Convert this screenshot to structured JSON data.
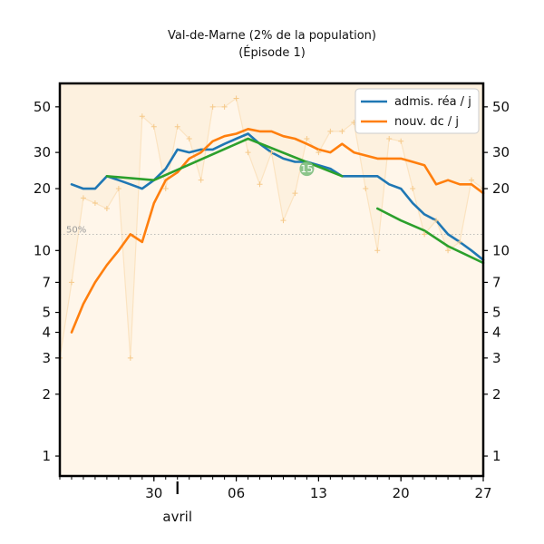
{
  "chart_data": {
    "type": "line",
    "title": "Val-de-Marne (2% de la population)",
    "subtitle": "(Épisode 1)",
    "scale": "log",
    "ylim": [
      0.8,
      65
    ],
    "y_ticks": [
      1,
      2,
      3,
      4,
      5,
      7,
      10,
      20,
      30,
      50
    ],
    "y_tick_labels": [
      "1",
      "2",
      "3",
      "4",
      "5",
      "7",
      "10",
      "20",
      "30",
      "50"
    ],
    "x_range": [
      "2020-03-22",
      "2020-04-27"
    ],
    "x_ticks": [
      {
        "date": "2020-03-30",
        "label": "30"
      },
      {
        "date": "2020-04-06",
        "label": "06"
      },
      {
        "date": "2020-04-13",
        "label": "13"
      },
      {
        "date": "2020-04-20",
        "label": "20"
      },
      {
        "date": "2020-04-27",
        "label": "27"
      }
    ],
    "month_label": {
      "date": "2020-04-01",
      "label": "avril"
    },
    "grid": false,
    "legend_position": "top-right",
    "legend": [
      "admis. réa / j",
      "nouv. dc / j"
    ],
    "reference_line": {
      "value": 12,
      "label": "50%"
    },
    "annotation": {
      "date": "2020-04-12",
      "value": 25,
      "label": "15"
    },
    "colors": {
      "rea": "#1f77b4",
      "dc": "#ff7f0e",
      "trend": "#2ca02c",
      "fill": "#fdf1df",
      "fill_line": "#fbe3c1",
      "markers": "#f5c98a"
    },
    "series": [
      {
        "name": "admis. réa / j",
        "x": [
          "2020-03-23",
          "2020-03-24",
          "2020-03-25",
          "2020-03-26",
          "2020-03-27",
          "2020-03-28",
          "2020-03-29",
          "2020-03-30",
          "2020-03-31",
          "2020-04-01",
          "2020-04-02",
          "2020-04-03",
          "2020-04-04",
          "2020-04-05",
          "2020-04-06",
          "2020-04-07",
          "2020-04-08",
          "2020-04-09",
          "2020-04-10",
          "2020-04-11",
          "2020-04-12",
          "2020-04-13",
          "2020-04-14",
          "2020-04-15",
          "2020-04-16",
          "2020-04-17",
          "2020-04-18",
          "2020-04-19",
          "2020-04-20",
          "2020-04-21",
          "2020-04-22",
          "2020-04-23",
          "2020-04-24",
          "2020-04-25",
          "2020-04-26",
          "2020-04-27"
        ],
        "values": [
          21,
          20,
          20,
          23,
          22,
          21,
          20,
          22,
          25,
          31,
          30,
          31,
          31,
          33,
          35,
          37,
          33,
          30,
          28,
          27,
          27,
          26,
          25,
          23,
          23,
          23,
          23,
          21,
          20,
          17,
          15,
          14,
          12,
          11,
          10,
          9
        ]
      },
      {
        "name": "nouv. dc / j",
        "x": [
          "2020-03-23",
          "2020-03-24",
          "2020-03-25",
          "2020-03-26",
          "2020-03-27",
          "2020-03-28",
          "2020-03-29",
          "2020-03-30",
          "2020-03-31",
          "2020-04-01",
          "2020-04-02",
          "2020-04-03",
          "2020-04-04",
          "2020-04-05",
          "2020-04-06",
          "2020-04-07",
          "2020-04-08",
          "2020-04-09",
          "2020-04-10",
          "2020-04-11",
          "2020-04-12",
          "2020-04-13",
          "2020-04-14",
          "2020-04-15",
          "2020-04-16",
          "2020-04-17",
          "2020-04-18",
          "2020-04-19",
          "2020-04-20",
          "2020-04-21",
          "2020-04-22",
          "2020-04-23",
          "2020-04-24",
          "2020-04-25",
          "2020-04-26",
          "2020-04-27"
        ],
        "values": [
          4,
          5.5,
          7,
          8.5,
          10,
          12,
          11,
          17,
          22,
          24,
          28,
          30,
          34,
          36,
          37,
          39,
          38,
          38,
          36,
          35,
          33,
          31,
          30,
          33,
          30,
          29,
          28,
          28,
          28,
          27,
          26,
          21,
          22,
          21,
          21,
          19
        ]
      },
      {
        "name": "",
        "x": [
          "2020-03-26",
          "2020-03-30",
          "2020-04-07",
          "2020-04-15"
        ],
        "values": [
          23,
          22,
          35,
          23
        ]
      },
      {
        "name": "",
        "x": [
          "2020-04-18",
          "2020-04-20",
          "2020-04-22",
          "2020-04-24",
          "2020-04-27"
        ],
        "values": [
          16,
          14,
          12.5,
          10.5,
          8.7
        ]
      },
      {
        "name": "",
        "x": [
          "2020-03-22",
          "2020-03-23",
          "2020-03-24",
          "2020-03-25",
          "2020-03-26",
          "2020-03-27",
          "2020-03-28",
          "2020-03-29",
          "2020-03-30",
          "2020-03-31",
          "2020-04-01",
          "2020-04-02",
          "2020-04-03",
          "2020-04-04",
          "2020-04-05",
          "2020-04-06",
          "2020-04-07",
          "2020-04-08",
          "2020-04-09",
          "2020-04-10",
          "2020-04-11",
          "2020-04-12",
          "2020-04-13",
          "2020-04-14",
          "2020-04-15",
          "2020-04-16",
          "2020-04-17",
          "2020-04-18",
          "2020-04-19",
          "2020-04-20",
          "2020-04-21",
          "2020-04-22",
          "2020-04-23",
          "2020-04-24",
          "2020-04-25",
          "2020-04-26",
          "2020-04-27"
        ],
        "values": [
          3,
          7,
          18,
          17,
          16,
          20,
          3,
          45,
          40,
          20,
          40,
          35,
          22,
          50,
          50,
          55,
          30,
          21,
          30,
          14,
          19,
          35,
          30,
          38,
          38,
          42,
          20,
          10,
          35,
          34,
          20,
          12,
          14,
          10,
          11,
          22,
          20
        ]
      }
    ]
  }
}
